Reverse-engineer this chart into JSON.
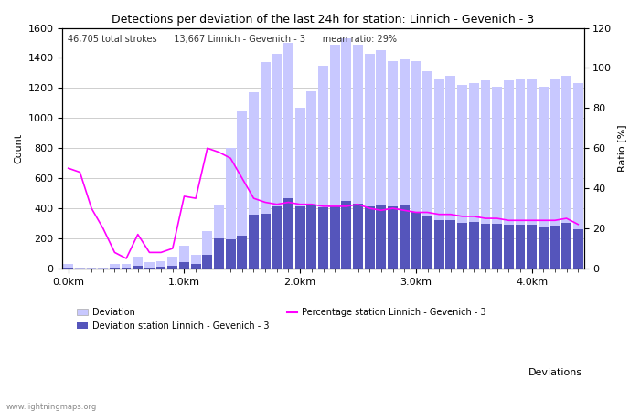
{
  "title": "Detections per deviation of the last 24h for station: Linnich - Gevenich - 3",
  "subtitle": "46,705 total strokes      13,667 Linnich - Gevenich - 3      mean ratio: 29%",
  "ylabel_left": "Count",
  "ylabel_right": "Ratio [%]",
  "xlabel": "Deviations",
  "ylim_left": [
    0,
    1600
  ],
  "ylim_right": [
    0,
    120
  ],
  "xtick_labels": [
    "0.0km",
    "1.0km",
    "2.0km",
    "3.0km",
    "4.0km"
  ],
  "xtick_positions": [
    0,
    10,
    20,
    30,
    40
  ],
  "color_light_bar": "#c8c8ff",
  "color_dark_bar": "#5555bb",
  "color_line": "#ff00ff",
  "color_bg": "#ffffff",
  "color_grid": "#bbbbbb",
  "legend_items": [
    "Deviation",
    "Deviation station Linnich - Gevenich - 3",
    "Percentage station Linnich - Gevenich - 3"
  ],
  "total_bars": [
    30,
    5,
    5,
    5,
    30,
    30,
    80,
    40,
    50,
    80,
    150,
    90,
    250,
    420,
    800,
    1050,
    1170,
    1370,
    1430,
    1500,
    1070,
    1180,
    1350,
    1490,
    1530,
    1490,
    1430,
    1450,
    1380,
    1390,
    1380,
    1310,
    1260,
    1280,
    1220,
    1230,
    1250,
    1210,
    1250,
    1260,
    1260,
    1210,
    1260,
    1280,
    1230
  ],
  "station_bars": [
    5,
    2,
    2,
    2,
    5,
    5,
    15,
    8,
    10,
    15,
    40,
    30,
    90,
    200,
    195,
    220,
    360,
    365,
    415,
    470,
    415,
    420,
    405,
    415,
    450,
    430,
    415,
    420,
    410,
    420,
    375,
    350,
    320,
    320,
    305,
    310,
    300,
    295,
    290,
    290,
    290,
    280,
    285,
    305,
    260
  ],
  "ratio_line": [
    50,
    48,
    30,
    20,
    8,
    5,
    17,
    8,
    8,
    10,
    36,
    35,
    60,
    58,
    55,
    45,
    35,
    33,
    32,
    33,
    32,
    32,
    31,
    31,
    31,
    32,
    30,
    29,
    30,
    29,
    28,
    28,
    27,
    27,
    26,
    26,
    25,
    25,
    24,
    24,
    24,
    24,
    24,
    25,
    22
  ]
}
